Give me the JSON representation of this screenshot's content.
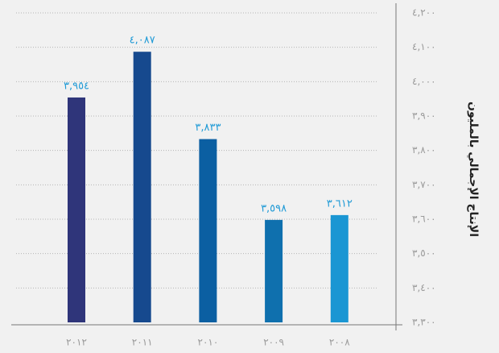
{
  "chart_data": {
    "type": "bar",
    "y_label": "الإنتاج الإجمالي بالمليون",
    "categories": [
      "٢٠١٢",
      "٢٠١١",
      "٢٠١٠",
      "٢٠٠٩",
      "٢٠٠٨"
    ],
    "values": [
      3954,
      4087,
      3833,
      3598,
      3612
    ],
    "value_labels": [
      "٣,٩٥٤",
      "٤,٠٨٧",
      "٣,٨٣٣",
      "٣,٥٩٨",
      "٣,٦١٢"
    ],
    "colors": [
      "#2f357a",
      "#16498e",
      "#0b5fa2",
      "#0f70ae",
      "#1a96d3"
    ],
    "ylim": [
      3300,
      4200
    ],
    "yticks": [
      {
        "value": 3300,
        "label": "٣,٣٠٠"
      },
      {
        "value": 3400,
        "label": "٣,٤٠٠"
      },
      {
        "value": 3500,
        "label": "٣,٥٠٠"
      },
      {
        "value": 3600,
        "label": "٣,٦٠٠"
      },
      {
        "value": 3700,
        "label": "٣,٧٠٠"
      },
      {
        "value": 3800,
        "label": "٣,٨٠٠"
      },
      {
        "value": 3900,
        "label": "٣,٩٠٠"
      },
      {
        "value": 4000,
        "label": "٤,٠٠٠"
      },
      {
        "value": 4100,
        "label": "٤,١٠٠"
      },
      {
        "value": 4200,
        "label": "٤,٢٠٠"
      }
    ],
    "grid": true
  }
}
